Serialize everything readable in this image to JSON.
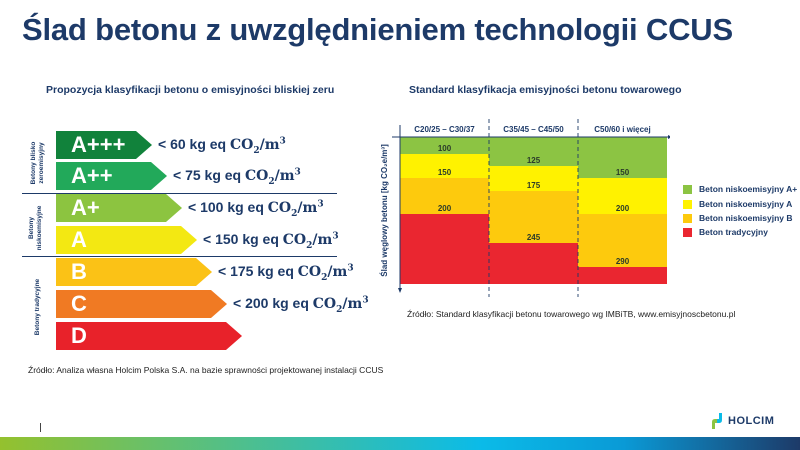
{
  "title": "Ślad betonu z uwzględnieniem technologii CCUS",
  "left_panel": {
    "subtitle": "Propozycja klasyfikacji betonu o emisyjności bliskiej zeru",
    "groups": [
      {
        "label_line1": "Betony blisko",
        "label_line2": "zeroemisyjny"
      },
      {
        "label_line1": "Betony",
        "label_line2": "niskoemisyjne"
      },
      {
        "label_line1": "Betony tradycyjne",
        "label_line2": ""
      }
    ],
    "classes": [
      {
        "label": "A+++",
        "color": "#11823b",
        "limit": "< 60 kg eq ",
        "unit": "CO",
        "sub": "2",
        "per": "/m",
        "sup": "3"
      },
      {
        "label": "A++",
        "color": "#22a95a",
        "limit": "< 75 kg eq ",
        "unit": "CO",
        "sub": "2",
        "per": "/m",
        "sup": "3"
      },
      {
        "label": "A+",
        "color": "#8cc440",
        "limit": "< 100 kg eq ",
        "unit": "CO",
        "sub": "2",
        "per": "/m",
        "sup": "3"
      },
      {
        "label": "A",
        "color": "#f3e812",
        "limit": "< 150 kg eq ",
        "unit": "CO",
        "sub": "2",
        "per": "/m",
        "sup": "3"
      },
      {
        "label": "B",
        "color": "#fbc216",
        "limit": "< 175 kg eq ",
        "unit": "CO",
        "sub": "2",
        "per": "/m",
        "sup": "3"
      },
      {
        "label": "C",
        "color": "#f07a23",
        "limit": "< 200 kg eq ",
        "unit": "CO",
        "sub": "2",
        "per": "/m",
        "sup": "3"
      },
      {
        "label": "D",
        "color": "#e8222a",
        "limit": "",
        "unit": "",
        "sub": "",
        "per": "",
        "sup": ""
      }
    ],
    "source": "Źródło: Analiza własna Holcim Polska S.A. na bazie sprawności projektowanej instalacji CCUS"
  },
  "right_panel": {
    "subtitle": "Standard klasyfikacja emisyjności betonu towarowego",
    "source": "Źródło: Standard klasyfikacji betonu towarowego wg IMBiTB, www.emisyjnoscbetonu.pl"
  },
  "chart_data": {
    "type": "bar",
    "stacked": true,
    "title": "Standard klasyfikacja emisyjności betonu towarowego",
    "xlabel": "",
    "ylabel": "Ślad węglowy betonu [kg CO₂e/m³]",
    "categories": [
      "C20/25 – C30/37",
      "C35/45 – C45/50",
      "C50/60 i więcej"
    ],
    "thresholds": [
      [
        100,
        150,
        200
      ],
      [
        125,
        175,
        245
      ],
      [
        150,
        200,
        290
      ]
    ],
    "series": [
      {
        "name": "Beton niskoemisyjny A+",
        "color": "#8cc443"
      },
      {
        "name": "Beton niskoemisyjny A",
        "color": "#fff200"
      },
      {
        "name": "Beton niskoemisyjny B",
        "color": "#fdca0d"
      },
      {
        "name": "Beton tradycyjny",
        "color": "#ea2630"
      }
    ],
    "ylim": [
      50,
      320
    ],
    "legend": "right"
  },
  "brand": {
    "name": "HOLCIM"
  }
}
